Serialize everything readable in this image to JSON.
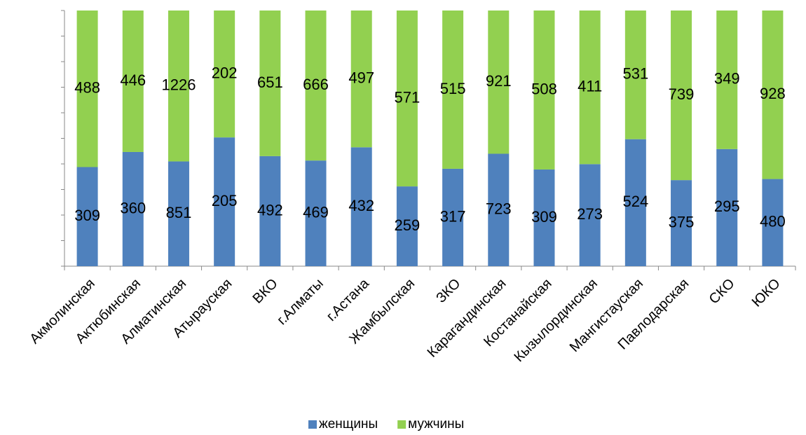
{
  "chart_data": {
    "type": "bar",
    "stacking": "percent",
    "categories": [
      "Акмолинская",
      "Актюбинская",
      "Алматинская",
      "Атырауская",
      "ВКО",
      "г.Алматы",
      "г.Астана",
      "Жамбылская",
      "ЗКО",
      "Карагандинская",
      "Костанайская",
      "Кызылординская",
      "Мангистауская",
      "Павлодарская",
      "СКО",
      "ЮКО"
    ],
    "series": [
      {
        "name": "женщины",
        "color": "#4f81bd",
        "values": [
          309,
          360,
          851,
          205,
          492,
          469,
          432,
          259,
          317,
          723,
          309,
          273,
          524,
          375,
          295,
          480
        ]
      },
      {
        "name": "мужчины",
        "color": "#92d050",
        "values": [
          488,
          446,
          1226,
          202,
          651,
          666,
          497,
          571,
          515,
          921,
          508,
          411,
          531,
          739,
          349,
          928
        ]
      }
    ],
    "ylim": [
      0,
      100
    ],
    "yticks": [
      0,
      10,
      20,
      30,
      40,
      50,
      60,
      70,
      80,
      90,
      100
    ],
    "legend": "bottom"
  }
}
